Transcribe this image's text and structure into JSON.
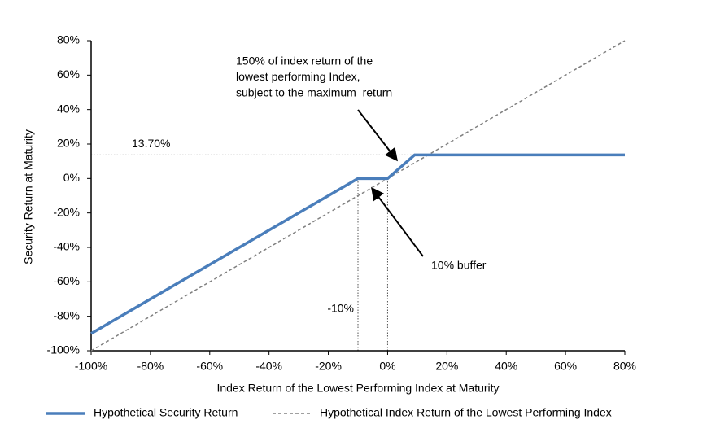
{
  "chart_data": {
    "type": "line",
    "xlabel": "Index Return of the Lowest Performing Index at Maturity",
    "ylabel": "Security Return at Maturity",
    "xlim": [
      -100,
      80
    ],
    "ylim": [
      -100,
      80
    ],
    "xticks": [
      {
        "value": -100,
        "label": "-100%"
      },
      {
        "value": -80,
        "label": "-80%"
      },
      {
        "value": -60,
        "label": "-60%"
      },
      {
        "value": -40,
        "label": "-40%"
      },
      {
        "value": -20,
        "label": "-20%"
      },
      {
        "value": 0,
        "label": "0%"
      },
      {
        "value": 20,
        "label": "20%"
      },
      {
        "value": 40,
        "label": "40%"
      },
      {
        "value": 60,
        "label": "60%"
      },
      {
        "value": 80,
        "label": "80%"
      }
    ],
    "yticks": [
      {
        "value": -100,
        "label": "-100%"
      },
      {
        "value": -80,
        "label": "-80%"
      },
      {
        "value": -60,
        "label": "-60%"
      },
      {
        "value": -40,
        "label": "-40%"
      },
      {
        "value": -20,
        "label": "-20%"
      },
      {
        "value": 0,
        "label": "0%"
      },
      {
        "value": 20,
        "label": "20%"
      },
      {
        "value": 40,
        "label": "40%"
      },
      {
        "value": 60,
        "label": "60%"
      },
      {
        "value": 80,
        "label": "80%"
      }
    ],
    "series": [
      {
        "name": "Hypothetical Security Return",
        "color": "#4a7ebb",
        "style": "solid",
        "x": [
          -100,
          -10,
          0,
          9.13,
          80
        ],
        "values": [
          -90,
          0,
          0,
          13.7,
          13.7
        ]
      },
      {
        "name": "Hypothetical Index Return of the Lowest Performing Index",
        "color": "#808080",
        "style": "dashed",
        "x": [
          -100,
          80
        ],
        "values": [
          -100,
          80
        ]
      }
    ],
    "hlines": [
      {
        "y": 13.7,
        "label": "13.70%"
      }
    ],
    "vlines": [
      {
        "x": -10,
        "label": "-10%"
      },
      {
        "x": 0
      }
    ],
    "annotations": [
      {
        "lines": [
          "150% of index return of the",
          "lowest performing Index,",
          "subject to the maximum  return"
        ]
      },
      {
        "lines": [
          "10% buffer"
        ]
      }
    ],
    "legend": "bottom"
  }
}
